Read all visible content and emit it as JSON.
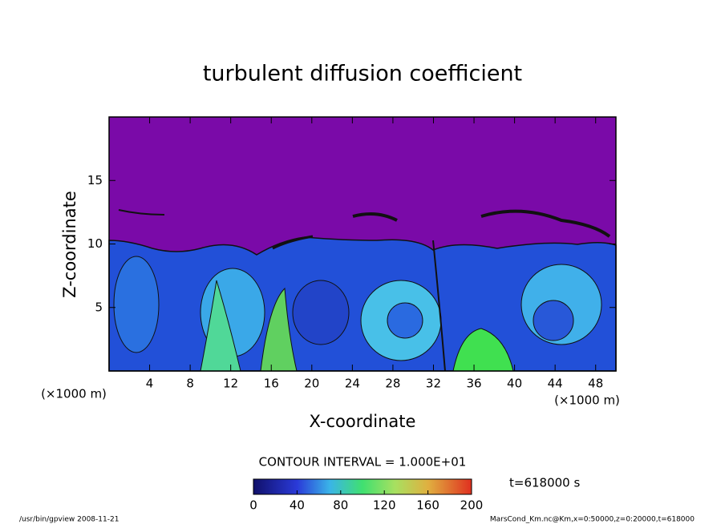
{
  "chart_data": {
    "type": "contour",
    "title": "turbulent diffusion coefficient",
    "x_label": "X-coordinate",
    "y_label": "Z-coordinate",
    "x_unit": "(×1000 m)",
    "y_unit": "(×1000 m)",
    "xlim": [
      0,
      50
    ],
    "xticks": [
      4,
      8,
      12,
      16,
      20,
      24,
      28,
      32,
      36,
      40,
      44,
      48
    ],
    "ylim": [
      0,
      20
    ],
    "yticks": [
      5,
      10,
      15
    ],
    "contour_interval": "CONTOUR INTERVAL = 1.000E+01",
    "time_label": "t=618000 s",
    "colorbar": {
      "lim": [
        0,
        200
      ],
      "ticks": [
        0,
        40,
        80,
        120,
        160,
        200
      ]
    },
    "footer_left": "/usr/bin/gpview   2008-11-21",
    "footer_right": "MarsCond_Km.nc@Km,x=0:50000,z=0:20000,t=618000"
  }
}
